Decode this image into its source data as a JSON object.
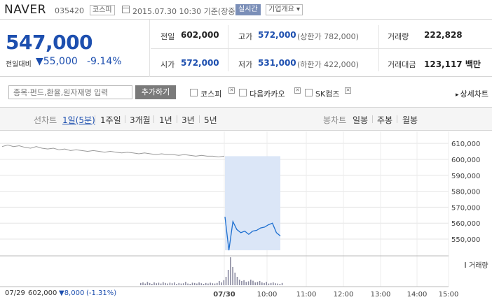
{
  "header": {
    "name": "NAVER",
    "code": "035420",
    "market_badge": "코스피",
    "date_text": "2015.07.30 10:30 기준(장중)",
    "realtime_badge": "실시간",
    "overview_button": "기업개요 ▾"
  },
  "summary": {
    "price": "547,000",
    "change_label": "전일대비",
    "change_value": "▼55,000",
    "change_pct": "-9.14%",
    "prev_close_label": "전일",
    "prev_close": "602,000",
    "high_label": "고가",
    "high": "572,000",
    "upper_limit": "(상한가 782,000)",
    "volume_label": "거래량",
    "volume": "222,828",
    "open_label": "시가",
    "open": "572,000",
    "low_label": "저가",
    "low": "531,000",
    "lower_limit": "(하한가 422,000)",
    "amount_label": "거래대금",
    "amount": "123,117 백만"
  },
  "search": {
    "placeholder": "종목·펀드,환율,원자재명 입력",
    "add_button": "추가하기",
    "compare": [
      "코스피",
      "다음카카오",
      "SK컴즈"
    ],
    "detail_link": "상세차트"
  },
  "tabs": {
    "line_caption": "선차트",
    "line_tabs": [
      "1일(5분)",
      "1주일",
      "3개월",
      "1년",
      "3년",
      "5년"
    ],
    "candle_caption": "봉차트",
    "candle_tabs": [
      "일봉",
      "주봉",
      "월봉"
    ]
  },
  "colors": {
    "up": "#d60000",
    "down": "#1d4faf",
    "line_prev": "#999999",
    "band": "#dbe6f7"
  },
  "chart_data": {
    "type": "line",
    "ylim": [
      543000,
      614000
    ],
    "yticks": [
      "610,000",
      "600,000",
      "590,000",
      "580,000",
      "570,000",
      "560,000",
      "550,000"
    ],
    "ytick_values": [
      610000,
      600000,
      590000,
      580000,
      570000,
      560000,
      550000
    ],
    "xtick_labels": [
      "07/30",
      "10:00",
      "11:00",
      "12:00",
      "13:00",
      "14:00",
      "15:00"
    ],
    "prev_day_series": [
      608000,
      609000,
      608000,
      608500,
      607500,
      607000,
      608000,
      607000,
      606500,
      607000,
      606000,
      606500,
      605500,
      606000,
      605500,
      605000,
      605500,
      605000,
      604500,
      605000,
      604500,
      604000,
      604500,
      604000,
      603500,
      604000,
      603500,
      603000,
      603500,
      603000,
      603000,
      602500,
      603000,
      602500,
      602000,
      602500,
      602000,
      602000,
      601500,
      602000
    ],
    "today_series": [
      564000,
      543000,
      561000,
      556000,
      554000,
      555000,
      553000,
      555000,
      555500,
      557000,
      557500,
      559000,
      560000,
      554000,
      552000
    ],
    "volume_label": "거래량",
    "volume_bars": [
      0.08,
      0.1,
      0.06,
      0.12,
      0.08,
      0.05,
      0.1,
      0.07,
      0.09,
      0.06,
      0.11,
      0.08,
      0.06,
      0.09,
      0.07,
      0.1,
      0.05,
      0.08,
      0.06,
      0.07,
      0.12,
      0.06,
      0.05,
      0.09,
      0.08,
      0.06,
      0.1,
      0.07,
      0.05,
      0.08,
      0.06,
      0.09,
      0.07,
      0.06,
      0.08,
      0.15,
      0.1,
      0.18,
      0.3,
      0.55,
      1.0,
      0.65,
      0.45,
      0.3,
      0.2,
      0.15,
      0.18,
      0.12,
      0.14,
      0.2,
      0.16,
      0.1,
      0.12,
      0.15,
      0.1,
      0.08,
      0.12,
      0.06,
      0.08,
      0.1,
      0.07,
      0.06,
      0.05,
      0.08
    ],
    "footer": {
      "date": "07/29",
      "price": "602,000",
      "change": "▼8,000",
      "pct": "(-1.31%)"
    }
  }
}
